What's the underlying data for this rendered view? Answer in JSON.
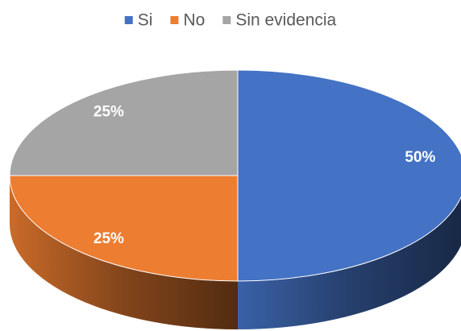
{
  "chart_data": {
    "type": "pie3d",
    "categories": [
      "Si",
      "No",
      "Sin evidencia"
    ],
    "values": [
      50,
      25,
      25
    ],
    "value_labels": [
      "50%",
      "25%",
      "25%"
    ],
    "colors": [
      "#4472c4",
      "#ed7d31",
      "#a5a5a5"
    ],
    "legend": "top"
  }
}
